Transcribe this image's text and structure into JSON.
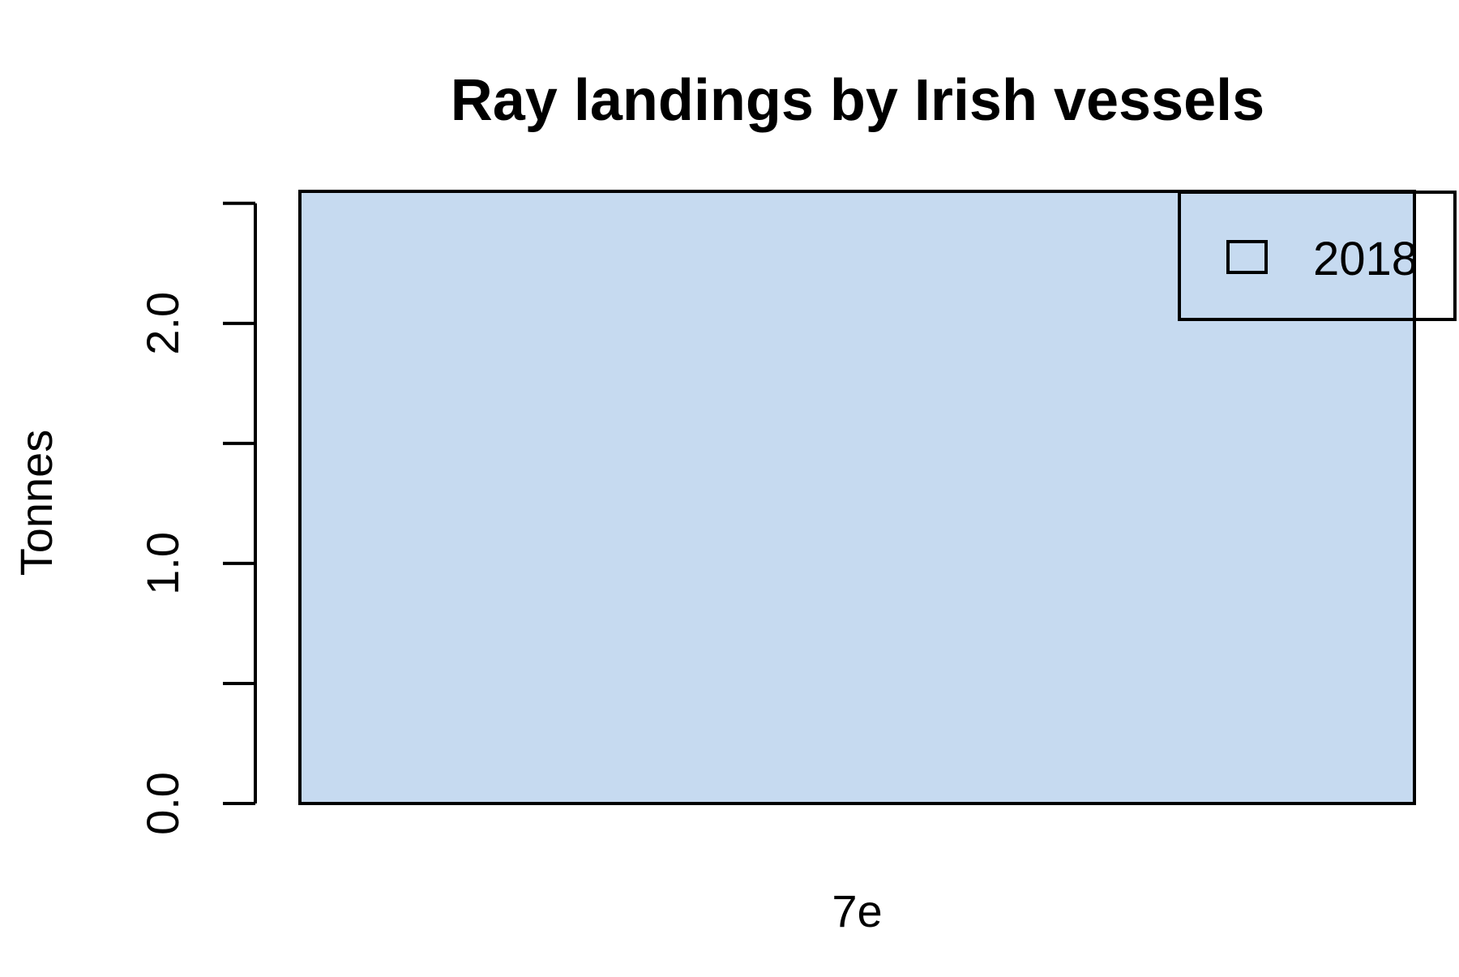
{
  "chart_data": {
    "type": "bar",
    "title": "Ray landings by Irish vessels",
    "xlabel": "",
    "ylabel": "Tonnes",
    "categories": [
      "7e"
    ],
    "series": [
      {
        "name": "2018",
        "values": [
          2.55
        ]
      }
    ],
    "ylim": [
      0,
      2.55
    ],
    "yticks": [
      0,
      0.5,
      1,
      1.5,
      2,
      2.5
    ],
    "ytick_labels": [
      "0.0",
      "",
      "1.0",
      "",
      "2.0",
      ""
    ],
    "grid": false,
    "legend_position": "top-right",
    "colors": {
      "bar_fill": "#c6daf0",
      "stroke": "#000000",
      "background": "#ffffff"
    }
  }
}
